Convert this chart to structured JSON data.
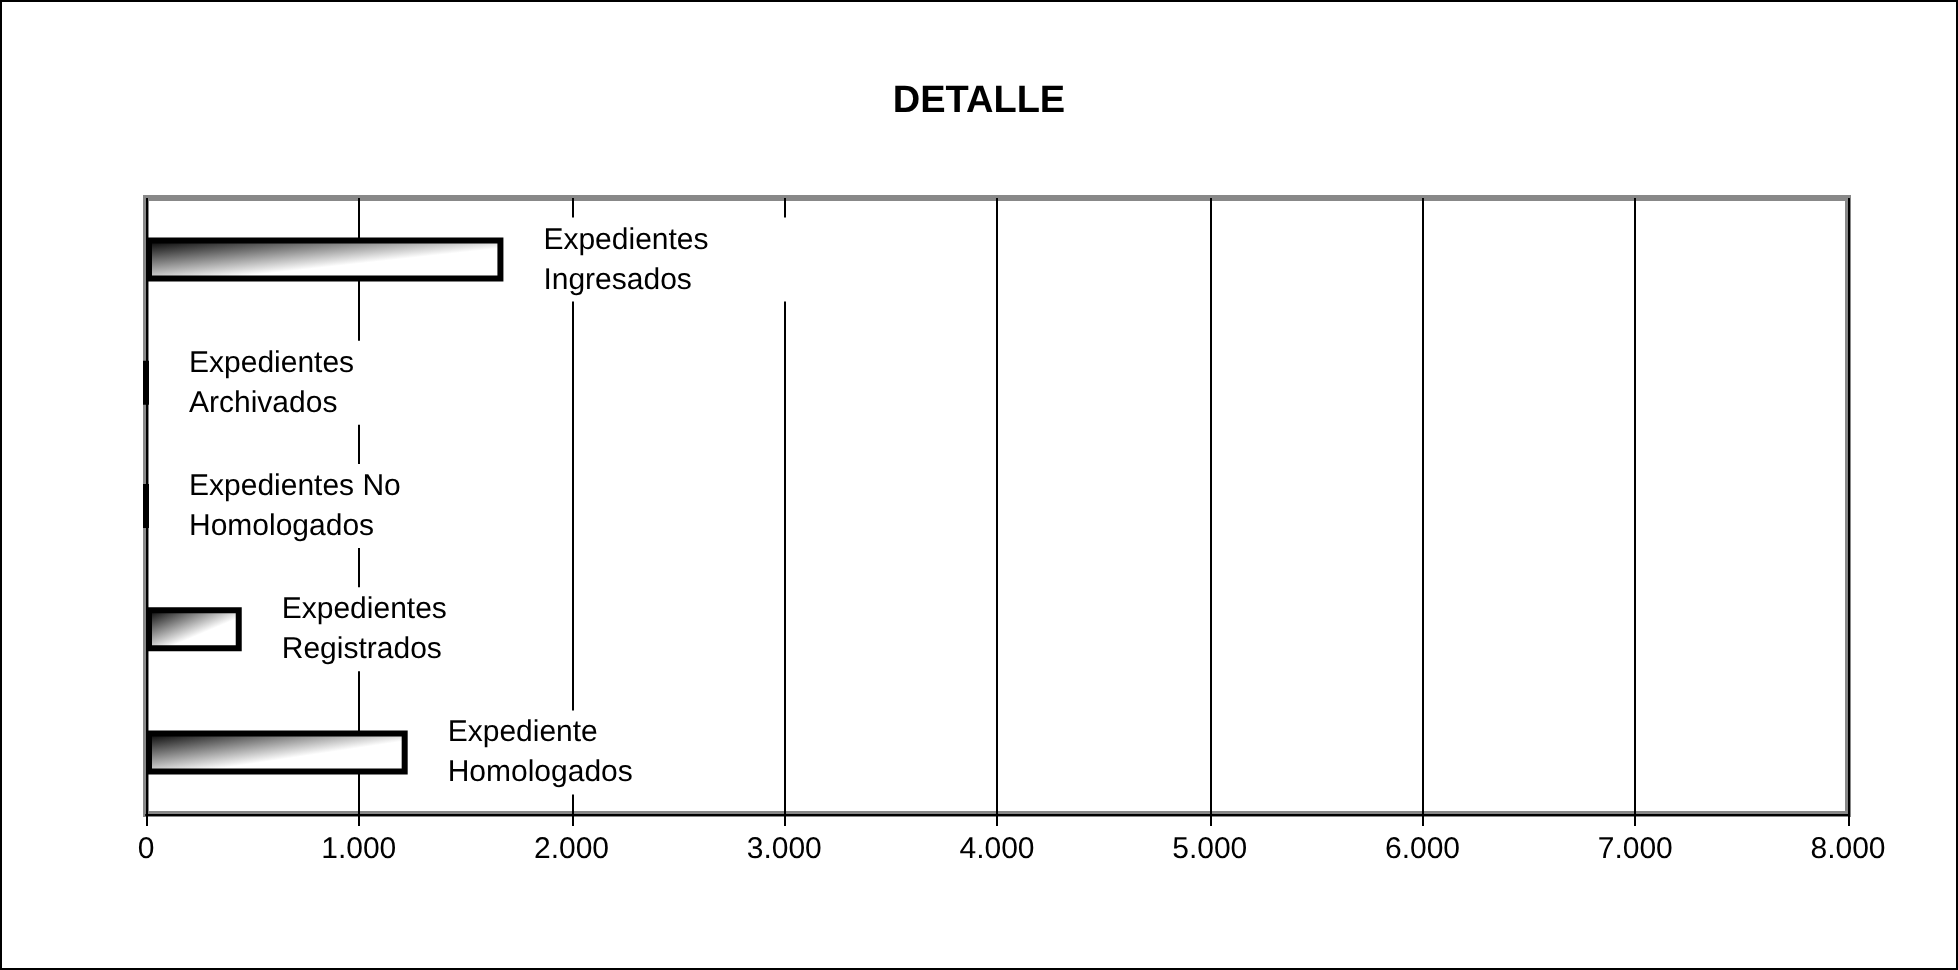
{
  "chart_data": {
    "type": "bar",
    "orientation": "horizontal",
    "title": "DETALLE",
    "categories": [
      "Expedientes Ingresados",
      "Expedientes Archivados",
      "Expedientes No Homologados",
      "Expedientes Registrados",
      "Expediente Homologados"
    ],
    "values": [
      1680,
      0,
      0,
      450,
      1230
    ],
    "color": "#000000",
    "xlim": [
      0,
      8000
    ],
    "xticks": [
      0,
      {
        "value": 1000,
        "label": "1.000"
      },
      {
        "value": 2000,
        "label": "2.000"
      },
      {
        "value": 3000,
        "label": "3.000"
      },
      {
        "value": 4000,
        "label": "4.000"
      },
      {
        "value": 5000,
        "label": "5.000"
      },
      {
        "value": 6000,
        "label": "6.000"
      },
      {
        "value": 7000,
        "label": "7.000"
      },
      {
        "value": 8000,
        "label": "8.000"
      }
    ],
    "tick_labels": "x",
    "grid": "x"
  }
}
